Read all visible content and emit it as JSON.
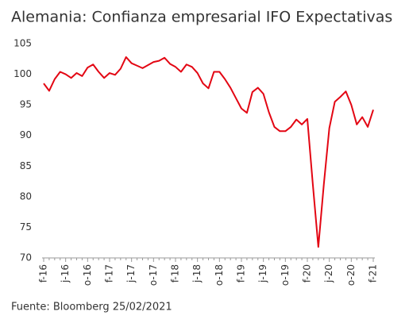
{
  "chart_data": {
    "type": "line",
    "title": "Alemania: Confianza empresarial IFO Expectativas",
    "source": "Fuente: Bloomberg 25/02/2021",
    "categories": [
      "f-16",
      null,
      null,
      null,
      "j-16",
      null,
      null,
      null,
      "o-16",
      null,
      null,
      null,
      "f-17",
      null,
      null,
      null,
      "j-17",
      null,
      null,
      null,
      "o-17",
      null,
      null,
      null,
      "f-18",
      null,
      null,
      null,
      "j-18",
      null,
      null,
      null,
      "o-18",
      null,
      null,
      null,
      "f-19",
      null,
      null,
      null,
      "j-19",
      null,
      null,
      null,
      "o-19",
      null,
      null,
      null,
      "f-20",
      null,
      null,
      null,
      "j-20",
      null,
      null,
      null,
      "o-20",
      null,
      null,
      null,
      "f-21"
    ],
    "series": [
      {
        "color": "#e30613",
        "values": [
          98.5,
          97.3,
          99.2,
          100.4,
          100.0,
          99.4,
          100.2,
          99.7,
          101.1,
          101.6,
          100.4,
          99.4,
          100.2,
          99.9,
          100.9,
          102.8,
          101.8,
          101.4,
          101.0,
          101.5,
          102.0,
          102.2,
          102.7,
          101.7,
          101.2,
          100.4,
          101.6,
          101.2,
          100.2,
          98.5,
          97.7,
          100.4,
          100.4,
          99.2,
          97.8,
          96.1,
          94.4,
          93.7,
          97.1,
          97.8,
          96.8,
          93.8,
          91.4,
          90.7,
          90.7,
          91.4,
          92.6,
          91.8,
          92.7,
          82,
          71.8,
          82,
          91.2,
          95.5,
          96.3,
          97.2,
          95.0,
          91.8,
          93.0,
          91.4,
          94.2
        ]
      }
    ],
    "ylim": [
      70,
      105
    ],
    "yticks": [
      70,
      75,
      80,
      85,
      90,
      95,
      100,
      105
    ],
    "grid": false
  }
}
